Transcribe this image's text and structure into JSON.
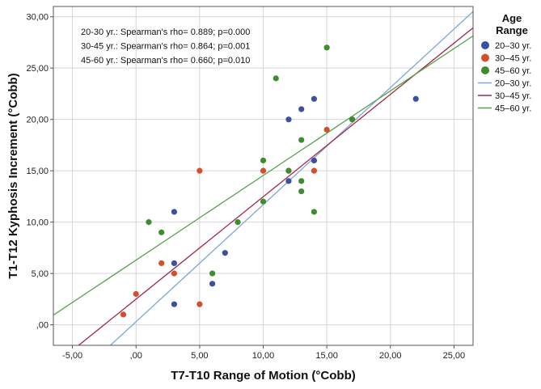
{
  "chart_data": {
    "type": "scatter",
    "xlabel": "T7-T10 Range of Motion (°Cobb)",
    "ylabel": "T1-T12 Kyphosis Increment (°Cobb)",
    "xlim": [
      -6.5,
      26.5
    ],
    "ylim": [
      -2,
      31
    ],
    "x_ticks": [
      "-5,00",
      ",00",
      "5,00",
      "10,00",
      "15,00",
      "20,00",
      "25,00"
    ],
    "x_tick_values": [
      -5,
      0,
      5,
      10,
      15,
      20,
      25
    ],
    "y_ticks": [
      ",00",
      "5,00",
      "10,00",
      "15,00",
      "20,00",
      "25,00",
      "30,00"
    ],
    "y_tick_values": [
      0,
      5,
      10,
      15,
      20,
      25,
      30
    ],
    "grid": true,
    "legend_position": "right",
    "legend_title": "Age Range",
    "annotations": [
      "20-30 yr.: Spearman's rho= 0.889;  p=0.000",
      "30-45 yr.: Spearman's rho= 0.864;  p=0.001",
      "45-60 yr.: Spearman's rho= 0.660;  p=0.010"
    ],
    "series": [
      {
        "name": "20–30 yr.",
        "color": "#3a50a0",
        "points": [
          [
            3,
            11
          ],
          [
            3,
            6
          ],
          [
            3,
            2
          ],
          [
            6,
            4
          ],
          [
            7,
            7
          ],
          [
            12,
            20
          ],
          [
            12,
            14
          ],
          [
            13,
            21
          ],
          [
            14,
            22
          ],
          [
            14,
            16
          ],
          [
            22,
            22
          ]
        ]
      },
      {
        "name": "30–45 yr.",
        "color": "#d4502a",
        "points": [
          [
            -1,
            1
          ],
          [
            0,
            3
          ],
          [
            2,
            6
          ],
          [
            3,
            5
          ],
          [
            5,
            15
          ],
          [
            5,
            2
          ],
          [
            10,
            15
          ],
          [
            12,
            15
          ],
          [
            14,
            15
          ],
          [
            15,
            19
          ],
          [
            17,
            20
          ]
        ]
      },
      {
        "name": "45–60 yr.",
        "color": "#3d8c2e",
        "points": [
          [
            1,
            10
          ],
          [
            2,
            9
          ],
          [
            6,
            5
          ],
          [
            8,
            10
          ],
          [
            10,
            16
          ],
          [
            10,
            12
          ],
          [
            11,
            24
          ],
          [
            12,
            15
          ],
          [
            13,
            18
          ],
          [
            13,
            14
          ],
          [
            13,
            13
          ],
          [
            14,
            11
          ],
          [
            15,
            27
          ],
          [
            17,
            20
          ]
        ]
      }
    ],
    "fit_lines": [
      {
        "name": "20–30 yr.",
        "color": "#7ea6d6",
        "slope": 1.14,
        "intercept": 0.3
      },
      {
        "name": "30–45 yr.",
        "color": "#a0284a",
        "slope": 0.997,
        "intercept": 2.5
      },
      {
        "name": "45–60 yr.",
        "color": "#55a24a",
        "slope": 0.824,
        "intercept": 6.3
      }
    ]
  }
}
